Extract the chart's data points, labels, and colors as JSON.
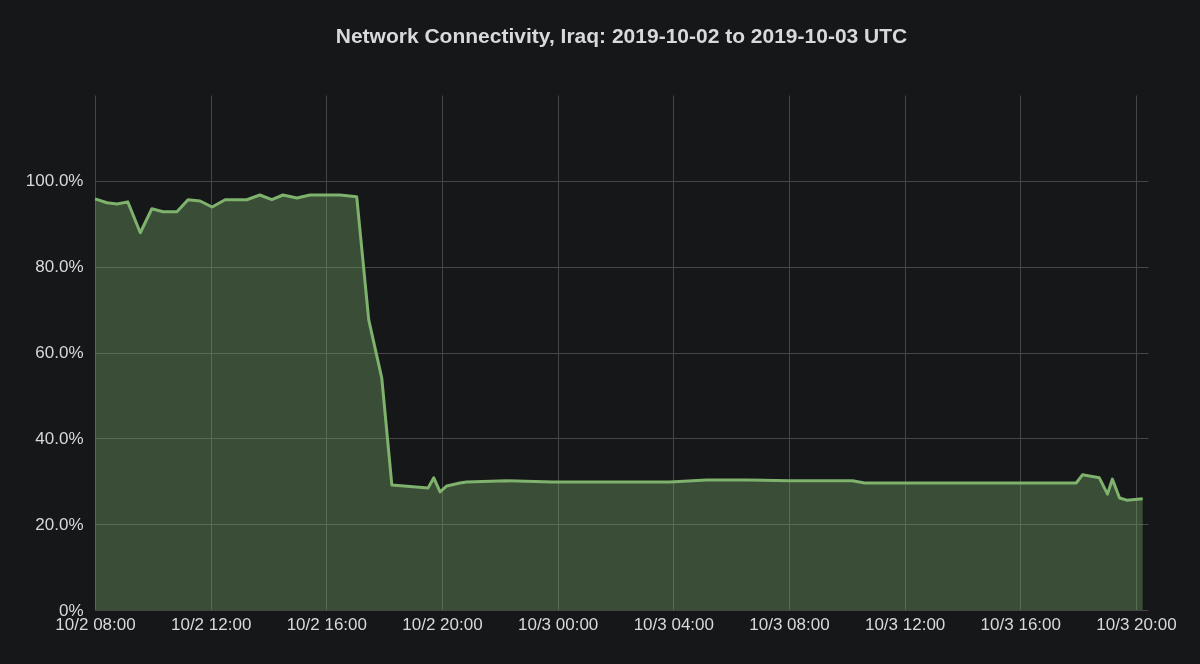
{
  "chart_data": {
    "type": "area",
    "title": "Network Connectivity, Iraq: 2019-10-02 to 2019-10-03 UTC",
    "x": [
      "2019-10-02T08:00",
      "2019-10-02T08:25",
      "2019-10-02T08:46",
      "2019-10-02T09:08",
      "2019-10-02T09:34",
      "2019-10-02T09:58",
      "2019-10-02T10:21",
      "2019-10-02T10:50",
      "2019-10-02T11:13",
      "2019-10-02T11:38",
      "2019-10-02T12:03",
      "2019-10-02T12:30",
      "2019-10-02T13:15",
      "2019-10-02T13:42",
      "2019-10-02T14:07",
      "2019-10-02T14:30",
      "2019-10-02T14:59",
      "2019-10-02T15:26",
      "2019-10-02T16:28",
      "2019-10-02T17:03",
      "2019-10-02T17:28",
      "2019-10-02T17:55",
      "2019-10-02T18:16",
      "2019-10-02T19:31",
      "2019-10-02T19:43",
      "2019-10-02T19:56",
      "2019-10-02T20:10",
      "2019-10-02T20:37",
      "2019-10-02T20:51",
      "2019-10-02T22:14",
      "2019-10-02T23:50",
      "2019-10-03T03:53",
      "2019-10-03T05:09",
      "2019-10-03T06:32",
      "2019-10-03T08:01",
      "2019-10-03T10:12",
      "2019-10-03T10:37",
      "2019-10-03T17:56",
      "2019-10-03T18:09",
      "2019-10-03T18:44",
      "2019-10-03T19:01",
      "2019-10-03T19:11",
      "2019-10-03T19:26",
      "2019-10-03T19:41",
      "2019-10-03T20:14"
    ],
    "series": [
      {
        "color": "#7eb26d",
        "values": [
          95.8,
          94.9,
          94.6,
          95.1,
          87.9,
          93.5,
          92.8,
          92.8,
          95.6,
          95.3,
          93.9,
          95.6,
          95.6,
          96.7,
          95.6,
          96.7,
          96.0,
          96.7,
          96.7,
          96.3,
          67.6,
          54.1,
          29.1,
          28.4,
          30.8,
          27.5,
          28.9,
          29.6,
          29.8,
          30.1,
          29.8,
          29.8,
          30.3,
          30.3,
          30.1,
          30.1,
          29.6,
          29.6,
          31.5,
          30.8,
          27.0,
          30.5,
          26.1,
          25.6,
          25.9
        ]
      }
    ],
    "xlim": [
      "2019-10-02T08:00",
      "2019-10-03T20:25"
    ],
    "xticks": [
      {
        "value": "2019-10-02T08:00",
        "label": "10/2 08:00"
      },
      {
        "value": "2019-10-02T12:00",
        "label": "10/2 12:00"
      },
      {
        "value": "2019-10-02T16:00",
        "label": "10/2 16:00"
      },
      {
        "value": "2019-10-02T20:00",
        "label": "10/2 20:00"
      },
      {
        "value": "2019-10-03T00:00",
        "label": "10/3 00:00"
      },
      {
        "value": "2019-10-03T04:00",
        "label": "10/3 04:00"
      },
      {
        "value": "2019-10-03T08:00",
        "label": "10/3 08:00"
      },
      {
        "value": "2019-10-03T12:00",
        "label": "10/3 12:00"
      },
      {
        "value": "2019-10-03T16:00",
        "label": "10/3 16:00"
      },
      {
        "value": "2019-10-03T20:00",
        "label": "10/3 20:00"
      }
    ],
    "ylim": [
      0,
      120
    ],
    "yticks": [
      {
        "value": 0,
        "label": "0%"
      },
      {
        "value": 20,
        "label": "20.0%"
      },
      {
        "value": 40,
        "label": "40.0%"
      },
      {
        "value": 60,
        "label": "60.0%"
      },
      {
        "value": 80,
        "label": "80.0%"
      },
      {
        "value": 100,
        "label": "100.0%"
      }
    ],
    "grid": true
  }
}
